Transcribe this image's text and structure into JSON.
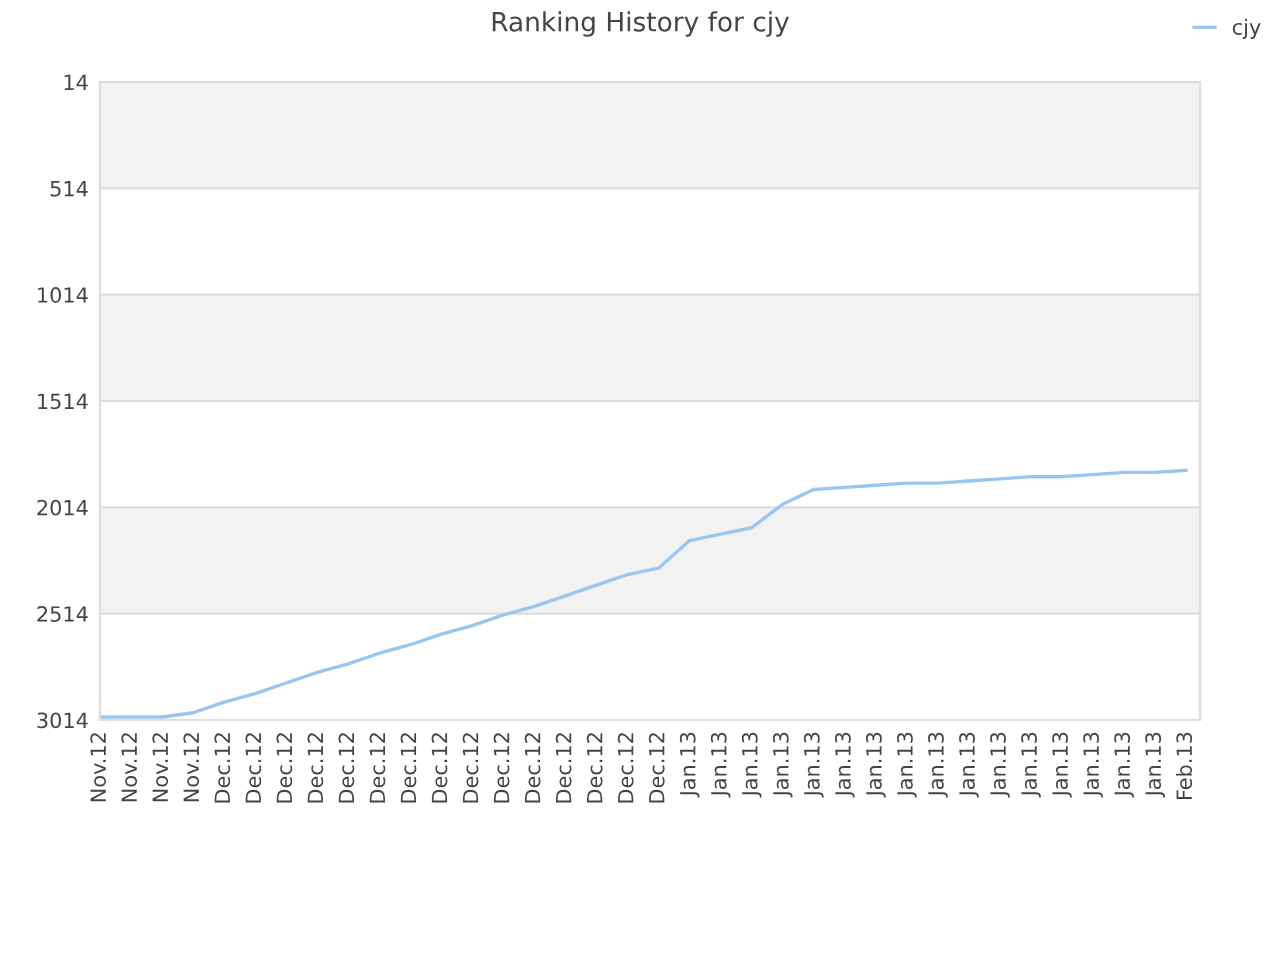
{
  "chart_data": {
    "type": "line",
    "title": "Ranking History for cjy",
    "categories": [
      "Nov.12",
      "Nov.12",
      "Nov.12",
      "Nov.12",
      "Dec.12",
      "Dec.12",
      "Dec.12",
      "Dec.12",
      "Dec.12",
      "Dec.12",
      "Dec.12",
      "Dec.12",
      "Dec.12",
      "Dec.12",
      "Dec.12",
      "Dec.12",
      "Dec.12",
      "Dec.12",
      "Dec.12",
      "Jan.13",
      "Jan.13",
      "Jan.13",
      "Jan.13",
      "Jan.13",
      "Jan.13",
      "Jan.13",
      "Jan.13",
      "Jan.13",
      "Jan.13",
      "Jan.13",
      "Jan.13",
      "Jan.13",
      "Jan.13",
      "Jan.13",
      "Jan.13",
      "Feb.13"
    ],
    "series": [
      {
        "name": "cjy",
        "color": "#99c6f0",
        "values": [
          3000,
          3000,
          3000,
          2980,
          2930,
          2890,
          2840,
          2790,
          2750,
          2700,
          2660,
          2610,
          2570,
          2520,
          2480,
          2430,
          2380,
          2330,
          2300,
          2170,
          2140,
          2110,
          2000,
          1930,
          1920,
          1910,
          1900,
          1900,
          1890,
          1880,
          1870,
          1870,
          1860,
          1850,
          1850,
          1840
        ]
      }
    ],
    "ylim": [
      3014,
      14
    ],
    "yticks": [
      14,
      514,
      1014,
      1514,
      2014,
      2514,
      3014
    ],
    "bands": [
      {
        "axis": "y",
        "from": 14,
        "to": 514,
        "color": "#f2f2f2"
      },
      {
        "axis": "y",
        "from": 1014,
        "to": 1514,
        "color": "#f2f2f2"
      },
      {
        "axis": "y",
        "from": 2014,
        "to": 2514,
        "color": "#f2f2f2"
      }
    ],
    "grid": "y",
    "legend": "top right",
    "marker": "none",
    "line_style": "solid"
  }
}
